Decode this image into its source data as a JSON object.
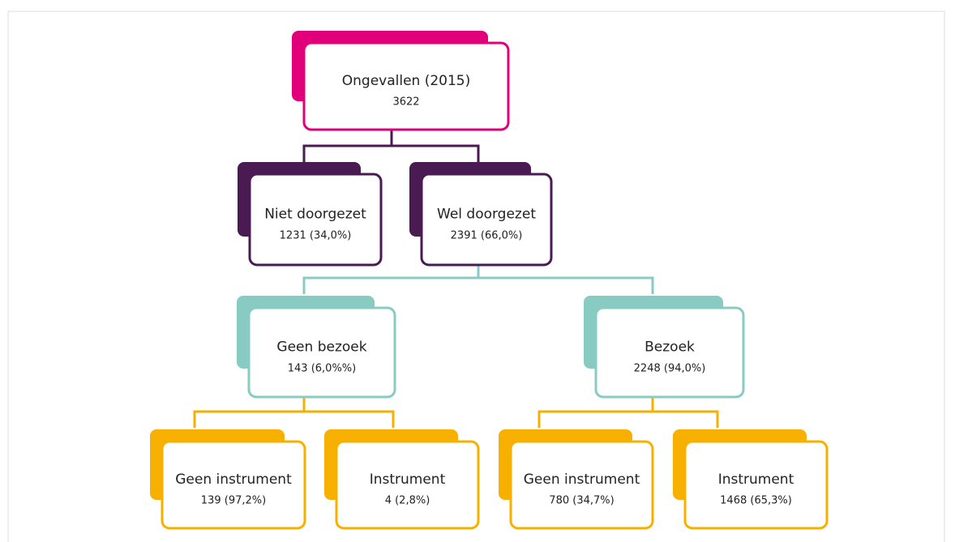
{
  "nodes": [
    {
      "label": "Ongevallen (2015)",
      "value": "3622"
    },
    {
      "label": "Niet doorgezet",
      "value": "1231 (34,0%)"
    },
    {
      "label": "Wel doorgezet",
      "value": "2391 (66,0%)"
    },
    {
      "label": "Geen bezoek",
      "value": "143 (6,0%%)"
    },
    {
      "label": "Bezoek",
      "value": "2248 (94,0%)"
    },
    {
      "label": "Geen instrument",
      "value": "139 (97,2%)"
    },
    {
      "label": "Instrument",
      "value": "4 (2,8%)"
    },
    {
      "label": "Geen instrument",
      "value": "780 (34,7%)"
    },
    {
      "label": "Instrument",
      "value": "1468 (65,3%)"
    }
  ]
}
